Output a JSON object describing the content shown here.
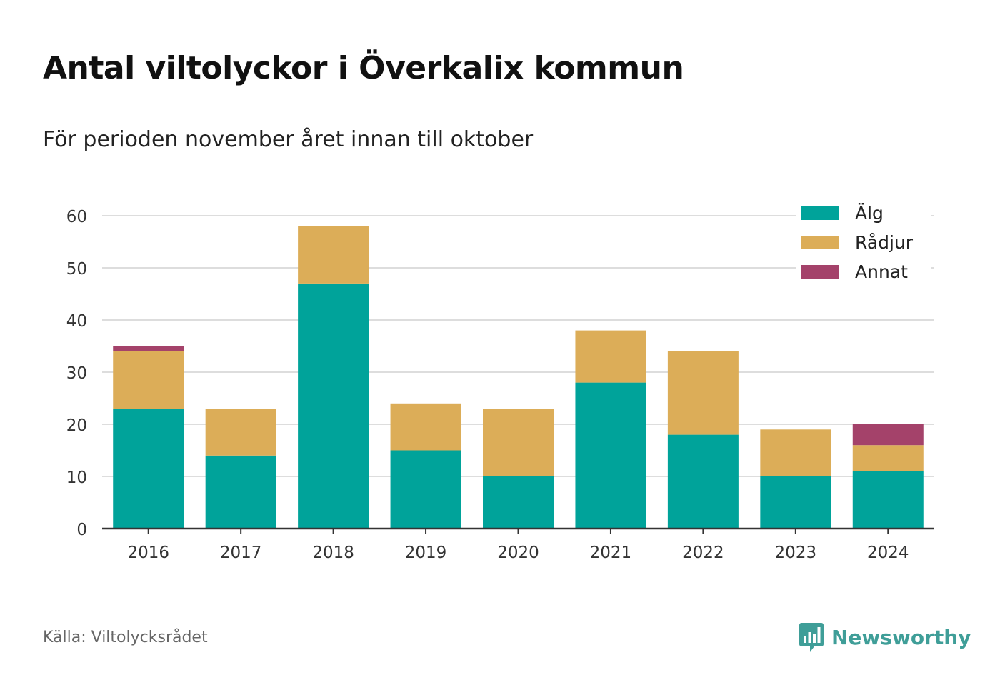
{
  "title": "Antal viltolyckor i Överkalix kommun",
  "subtitle": "För perioden november året innan till oktober",
  "source": "Källa: Viltolycksrådet",
  "brand": {
    "name": "Newsworthy",
    "icon": "newsworthy-logo-icon",
    "color": "#3f9e98"
  },
  "chart_data": {
    "type": "bar",
    "stacked": true,
    "categories": [
      "2016",
      "2017",
      "2018",
      "2019",
      "2020",
      "2021",
      "2022",
      "2023",
      "2024"
    ],
    "series": [
      {
        "name": "Älg",
        "color": "#00a39a",
        "values": [
          23,
          14,
          47,
          15,
          10,
          28,
          18,
          10,
          11
        ]
      },
      {
        "name": "Rådjur",
        "color": "#dcad58",
        "values": [
          11,
          9,
          11,
          9,
          13,
          10,
          16,
          9,
          5
        ]
      },
      {
        "name": "Annat",
        "color": "#a4426a",
        "values": [
          1,
          0,
          0,
          0,
          0,
          0,
          0,
          0,
          4
        ]
      }
    ],
    "ylim": [
      0,
      60
    ],
    "yticks": [
      0,
      10,
      20,
      30,
      40,
      50,
      60
    ],
    "grid": true,
    "legend": "top-right"
  }
}
